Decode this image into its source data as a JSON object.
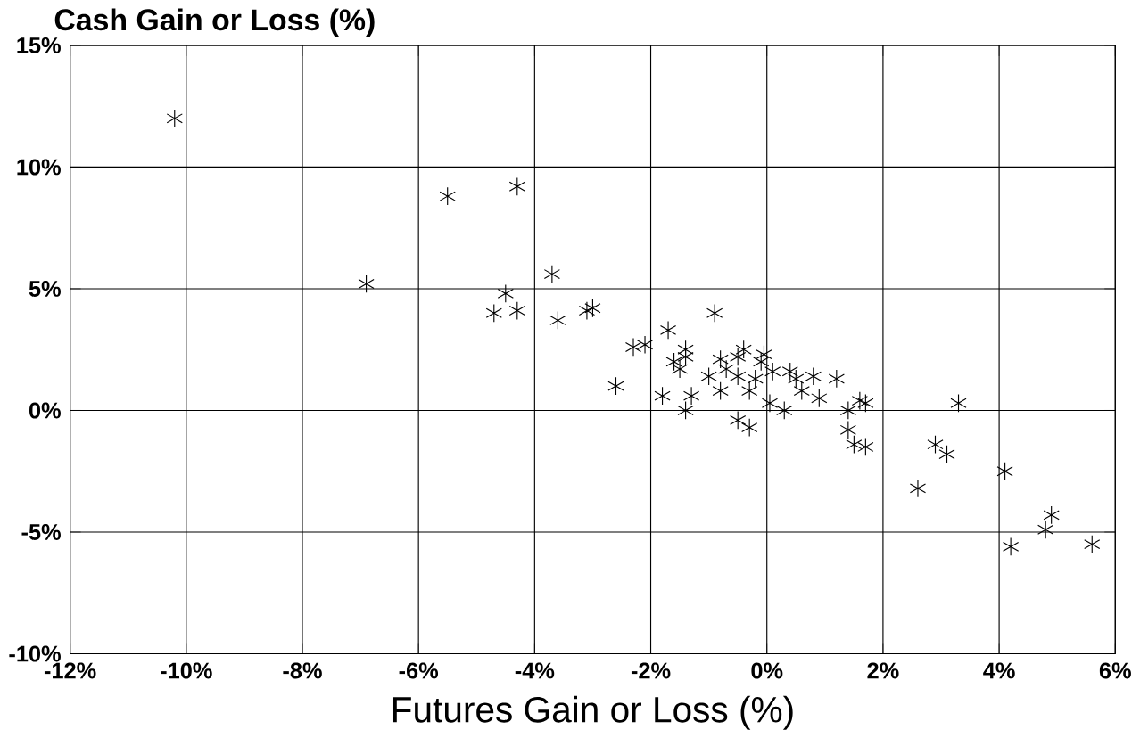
{
  "chart_data": {
    "type": "scatter",
    "xlabel": "Futures Gain or Loss (%)",
    "ylabel": "Cash Gain or Loss (%)",
    "xlim": [
      -12,
      6
    ],
    "ylim": [
      -10,
      15
    ],
    "xticks": [
      {
        "value": -12,
        "label": "-12%"
      },
      {
        "value": -10,
        "label": "-10%"
      },
      {
        "value": -8,
        "label": "-8%"
      },
      {
        "value": -6,
        "label": "-6%"
      },
      {
        "value": -4,
        "label": "-4%"
      },
      {
        "value": -2,
        "label": "-2%"
      },
      {
        "value": 0,
        "label": "0%"
      },
      {
        "value": 2,
        "label": "2%"
      },
      {
        "value": 4,
        "label": "4%"
      },
      {
        "value": 6,
        "label": "6%"
      }
    ],
    "yticks": [
      {
        "value": -10,
        "label": "-10%"
      },
      {
        "value": -5,
        "label": "-5%"
      },
      {
        "value": 0,
        "label": "0%"
      },
      {
        "value": 5,
        "label": "5%"
      },
      {
        "value": 10,
        "label": "10%"
      },
      {
        "value": 15,
        "label": "15%"
      }
    ],
    "grid": true,
    "marker": "cross",
    "series": [
      {
        "color": "#000000",
        "x": [
          -10.2,
          -5.5,
          -4.3,
          -6.9,
          -3.7,
          -4.5,
          -4.7,
          -4.3,
          -3.6,
          -3.1,
          -3.0,
          -2.6,
          -2.3,
          -2.1,
          -1.7,
          -0.9,
          -1.8,
          -1.4,
          -1.3,
          -1.6,
          -1.4,
          -1.5,
          -1.4,
          -1.0,
          -0.8,
          -0.7,
          -0.5,
          -0.4,
          -0.5,
          -0.3,
          -0.1,
          -0.2,
          -0.05,
          0.1,
          0.4,
          0.5,
          0.05,
          0.3,
          0.6,
          0.8,
          1.2,
          0.9,
          1.4,
          1.6,
          1.7,
          1.4,
          1.7,
          1.5,
          -0.5,
          -0.3,
          -0.8,
          3.3,
          2.9,
          3.1,
          2.6,
          4.1,
          4.2,
          4.8,
          4.9,
          5.6
        ],
        "values": [
          12.0,
          8.8,
          9.2,
          5.2,
          5.6,
          4.8,
          4.0,
          4.1,
          3.7,
          4.1,
          4.2,
          1.0,
          2.6,
          2.7,
          3.3,
          4.0,
          0.6,
          0.0,
          0.6,
          2.0,
          2.2,
          1.7,
          2.5,
          1.4,
          2.1,
          1.7,
          2.2,
          2.5,
          1.4,
          0.8,
          2.0,
          1.3,
          2.3,
          1.6,
          1.6,
          1.3,
          0.3,
          0.0,
          0.8,
          1.4,
          1.3,
          0.5,
          0.0,
          0.4,
          0.3,
          -0.8,
          -1.5,
          -1.4,
          -0.4,
          -0.7,
          0.8,
          0.3,
          -1.4,
          -1.8,
          -3.2,
          -2.5,
          -5.6,
          -4.9,
          -4.3,
          -5.5
        ]
      }
    ]
  }
}
